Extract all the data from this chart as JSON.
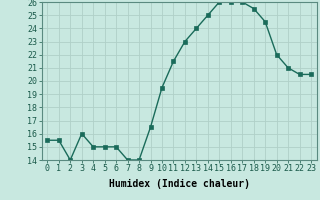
{
  "x": [
    0,
    1,
    2,
    3,
    4,
    5,
    6,
    7,
    8,
    9,
    10,
    11,
    12,
    13,
    14,
    15,
    16,
    17,
    18,
    19,
    20,
    21,
    22,
    23
  ],
  "y": [
    15.5,
    15.5,
    14,
    16,
    15,
    15,
    15,
    14,
    14,
    16.5,
    19.5,
    21.5,
    23,
    24,
    25,
    26,
    26,
    26,
    25.5,
    24.5,
    22,
    21,
    20.5,
    20.5
  ],
  "line_color": "#1a6b5a",
  "marker_color": "#1a6b5a",
  "bg_color": "#c8e8e0",
  "grid_color": "#b0d0c8",
  "xlabel": "Humidex (Indice chaleur)",
  "ylim": [
    14,
    26
  ],
  "yticks": [
    14,
    15,
    16,
    17,
    18,
    19,
    20,
    21,
    22,
    23,
    24,
    25,
    26
  ],
  "xticks": [
    0,
    1,
    2,
    3,
    4,
    5,
    6,
    7,
    8,
    9,
    10,
    11,
    12,
    13,
    14,
    15,
    16,
    17,
    18,
    19,
    20,
    21,
    22,
    23
  ],
  "xtick_labels": [
    "0",
    "1",
    "2",
    "3",
    "4",
    "5",
    "6",
    "7",
    "8",
    "9",
    "10",
    "11",
    "12",
    "13",
    "14",
    "15",
    "16",
    "17",
    "18",
    "19",
    "20",
    "21",
    "22",
    "23"
  ],
  "ytick_labels": [
    "14",
    "15",
    "16",
    "17",
    "18",
    "19",
    "20",
    "21",
    "22",
    "23",
    "24",
    "25",
    "26"
  ],
  "xlabel_fontsize": 7,
  "tick_fontsize": 6,
  "marker_size": 2.5,
  "line_width": 1.0
}
